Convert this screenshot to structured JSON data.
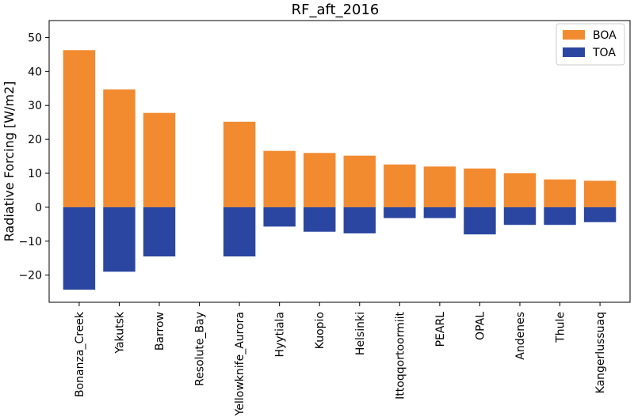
{
  "chart_data": {
    "type": "bar",
    "title": "RF_aft_2016",
    "xlabel": "",
    "ylabel": "Radiative Forcing [W/m2]",
    "ylim": [
      -28,
      55
    ],
    "yticks": [
      -20,
      -10,
      0,
      10,
      20,
      30,
      40,
      50
    ],
    "categories": [
      "Bonanza_Creek",
      "Yakutsk",
      "Barrow",
      "Resolute_Bay",
      "Yellowknife_Aurora",
      "Hyytiala",
      "Kuopio",
      "Helsinki",
      "Ittoqqortoormiit",
      "PEARL",
      "OPAL",
      "Andenes",
      "Thule",
      "Kangerlussuaq"
    ],
    "series": [
      {
        "name": "BOA",
        "color": "#f28a30",
        "values": [
          46.3,
          34.7,
          27.8,
          0,
          25.2,
          16.6,
          16.0,
          15.2,
          12.6,
          12.0,
          11.4,
          10.0,
          8.2,
          7.8
        ]
      },
      {
        "name": "TOA",
        "color": "#2a46a0",
        "values": [
          -24.3,
          -19.0,
          -14.5,
          0,
          -14.5,
          -5.7,
          -7.2,
          -7.7,
          -3.2,
          -3.2,
          -8.0,
          -5.2,
          -5.2,
          -4.4
        ]
      }
    ],
    "grid": false,
    "legend": "top-right"
  }
}
